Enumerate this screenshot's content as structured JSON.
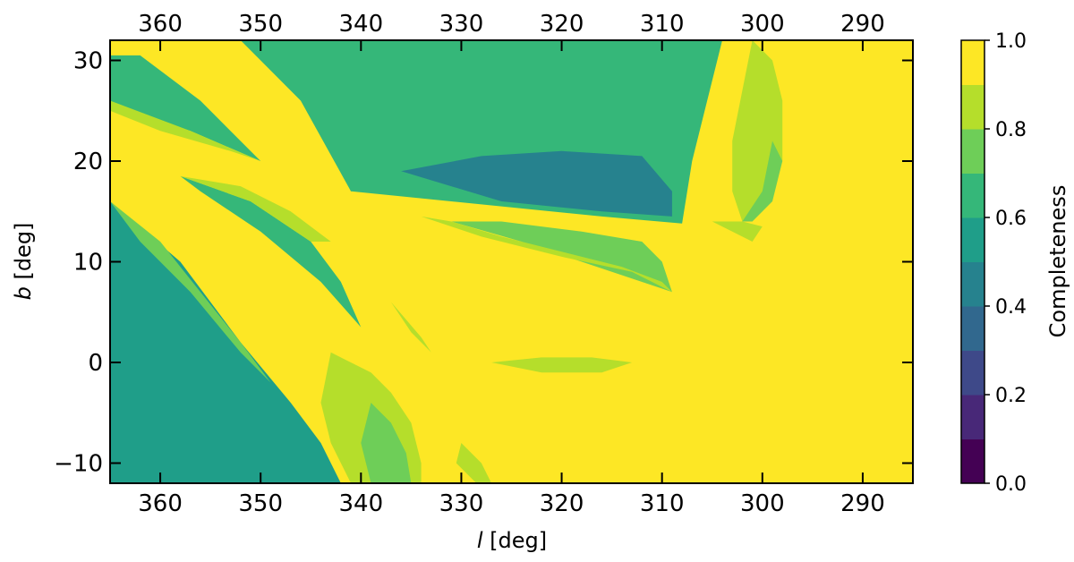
{
  "chart_data": {
    "type": "heatmap",
    "title": "",
    "xlabel_var": "l",
    "xlabel_unit": " [deg]",
    "ylabel_var": "b",
    "ylabel_unit": " [deg]",
    "xlim": [
      365,
      285
    ],
    "ylim": [
      -12,
      32
    ],
    "x_ticks": [
      360,
      350,
      340,
      330,
      320,
      310,
      300,
      290
    ],
    "x_tick_labels": [
      "360",
      "350",
      "340",
      "330",
      "320",
      "310",
      "300",
      "290"
    ],
    "y_ticks": [
      -10,
      0,
      10,
      20,
      30
    ],
    "y_tick_labels": [
      "−10",
      "0",
      "10",
      "20",
      "30"
    ],
    "top_axis_ticks": [
      360,
      350,
      340,
      330,
      320,
      310,
      300,
      290
    ],
    "top_axis_tick_labels": [
      "360",
      "350",
      "340",
      "330",
      "320",
      "310",
      "300",
      "290"
    ],
    "grid": false,
    "colorbar": {
      "label": "Completeness",
      "range": [
        0,
        1
      ],
      "levels": [
        0.0,
        0.1,
        0.2,
        0.3,
        0.4,
        0.5,
        0.6,
        0.7,
        0.8,
        0.9,
        1.0
      ],
      "colors": [
        "#440154",
        "#482878",
        "#3e4989",
        "#31688e",
        "#26828e",
        "#1f9e89",
        "#35b779",
        "#6ece58",
        "#b5de2b",
        "#fde725"
      ],
      "ticks": [
        0.0,
        0.2,
        0.4,
        0.6,
        0.8,
        1.0
      ],
      "tick_labels": [
        "0.0",
        "0.2",
        "0.4",
        "0.6",
        "0.8",
        "1.0"
      ]
    },
    "background_value": 0.95,
    "regions": [
      {
        "name": "upper-central-field",
        "value": 0.5,
        "polygon": [
          [
            341,
            17
          ],
          [
            337,
            18
          ],
          [
            332,
            19.5
          ],
          [
            325,
            21
          ],
          [
            318,
            22
          ],
          [
            312,
            23
          ],
          [
            308,
            25
          ],
          [
            306,
            30
          ],
          [
            305,
            32
          ],
          [
            345,
            32
          ],
          [
            345,
            26
          ]
        ]
      },
      {
        "name": "upper-central-gradient",
        "value": 0.65,
        "polygon": [
          [
            352,
            32
          ],
          [
            346,
            26
          ],
          [
            341,
            17
          ],
          [
            336,
            16.5
          ],
          [
            326,
            15.5
          ],
          [
            316,
            14.5
          ],
          [
            308,
            13.8
          ],
          [
            307,
            20
          ],
          [
            304,
            32
          ]
        ]
      },
      {
        "name": "upper-central-deep",
        "value": 0.4,
        "polygon": [
          [
            336,
            19
          ],
          [
            328,
            20.5
          ],
          [
            320,
            21
          ],
          [
            312,
            20.5
          ],
          [
            309,
            17
          ],
          [
            309,
            14.5
          ],
          [
            316,
            15
          ],
          [
            326,
            16
          ]
        ]
      },
      {
        "name": "upper-left-wedge",
        "value": 0.6,
        "polygon": [
          [
            365,
            30.5
          ],
          [
            362,
            30.5
          ],
          [
            356,
            26
          ],
          [
            350,
            20
          ],
          [
            357,
            23
          ],
          [
            365,
            25.5
          ]
        ]
      },
      {
        "name": "left-wedge-edge",
        "value": 0.85,
        "polygon": [
          [
            365,
            26
          ],
          [
            357,
            23
          ],
          [
            350,
            20
          ],
          [
            353,
            21
          ],
          [
            360,
            23
          ],
          [
            365,
            25
          ]
        ]
      },
      {
        "name": "left-mid-wedge",
        "value": 0.65,
        "polygon": [
          [
            358,
            18.5
          ],
          [
            351,
            16
          ],
          [
            345,
            12
          ],
          [
            342,
            8
          ],
          [
            340,
            3.5
          ],
          [
            344,
            8
          ],
          [
            350,
            13
          ],
          [
            356,
            17
          ]
        ]
      },
      {
        "name": "left-mid-wedge-edge",
        "value": 0.85,
        "polygon": [
          [
            358,
            18.5
          ],
          [
            352,
            17.5
          ],
          [
            347,
            15
          ],
          [
            343,
            12
          ],
          [
            345,
            12
          ],
          [
            351,
            16
          ]
        ]
      },
      {
        "name": "bottom-left-field",
        "value": 0.55,
        "polygon": [
          [
            365,
            16
          ],
          [
            358,
            10
          ],
          [
            352,
            2
          ],
          [
            347,
            -4
          ],
          [
            344,
            -8
          ],
          [
            342,
            -12
          ],
          [
            365,
            -12
          ]
        ]
      },
      {
        "name": "bottom-left-edge",
        "value": 0.7,
        "polygon": [
          [
            365,
            16
          ],
          [
            360,
            12
          ],
          [
            356,
            7
          ],
          [
            352,
            2
          ],
          [
            349,
            -2
          ],
          [
            347,
            -4
          ],
          [
            352,
            1
          ],
          [
            357,
            7
          ],
          [
            362,
            12
          ]
        ]
      },
      {
        "name": "bottom-band",
        "value": 0.85,
        "polygon": [
          [
            343,
            1
          ],
          [
            339,
            -1
          ],
          [
            337,
            -3
          ],
          [
            335,
            -6
          ],
          [
            334,
            -10
          ],
          [
            334,
            -12
          ],
          [
            341,
            -12
          ],
          [
            343,
            -8
          ],
          [
            344,
            -4
          ]
        ]
      },
      {
        "name": "bottom-band-core",
        "value": 0.7,
        "polygon": [
          [
            339,
            -4
          ],
          [
            337,
            -6
          ],
          [
            335.5,
            -9
          ],
          [
            335,
            -12
          ],
          [
            339,
            -12
          ],
          [
            340,
            -8
          ]
        ]
      },
      {
        "name": "lower-middle-band",
        "value": 0.75,
        "polygon": [
          [
            331,
            14
          ],
          [
            324,
            12
          ],
          [
            318,
            10
          ],
          [
            312,
            8
          ],
          [
            309,
            7
          ],
          [
            310,
            10
          ],
          [
            312,
            12
          ],
          [
            318,
            13
          ],
          [
            326,
            14
          ]
        ]
      },
      {
        "name": "lower-middle-band-edge",
        "value": 0.85,
        "polygon": [
          [
            334,
            14.5
          ],
          [
            331,
            14
          ],
          [
            326,
            12.5
          ],
          [
            320,
            11
          ],
          [
            314,
            9.5
          ],
          [
            310,
            8
          ],
          [
            309,
            7
          ],
          [
            313,
            9
          ],
          [
            320,
            10.5
          ],
          [
            328,
            12.5
          ]
        ]
      },
      {
        "name": "small-triangle",
        "value": 0.8,
        "polygon": [
          [
            337,
            6
          ],
          [
            335,
            3
          ],
          [
            333,
            1
          ],
          [
            334,
            2.5
          ]
        ]
      },
      {
        "name": "small-streak",
        "value": 0.85,
        "polygon": [
          [
            327,
            0
          ],
          [
            322,
            -1
          ],
          [
            316,
            -1
          ],
          [
            313,
            0
          ],
          [
            317,
            0.5
          ],
          [
            322,
            0.5
          ]
        ]
      },
      {
        "name": "bottom-small-streak",
        "value": 0.85,
        "polygon": [
          [
            330,
            -8
          ],
          [
            328,
            -10
          ],
          [
            327,
            -12
          ],
          [
            328.5,
            -12
          ],
          [
            330.5,
            -10
          ]
        ]
      },
      {
        "name": "right-diagonal-band",
        "value": 0.8,
        "polygon": [
          [
            301,
            32
          ],
          [
            299,
            30
          ],
          [
            298,
            26
          ],
          [
            298,
            20
          ],
          [
            300,
            15
          ],
          [
            302,
            14
          ],
          [
            303,
            17
          ],
          [
            303,
            22
          ],
          [
            302,
            27
          ],
          [
            301,
            32
          ]
        ]
      },
      {
        "name": "right-diagonal-band-2",
        "value": 0.7,
        "polygon": [
          [
            299,
            22
          ],
          [
            298,
            20
          ],
          [
            299,
            16
          ],
          [
            301,
            14
          ],
          [
            302,
            14
          ],
          [
            300,
            17
          ]
        ]
      },
      {
        "name": "right-lower-streak",
        "value": 0.85,
        "polygon": [
          [
            305,
            14
          ],
          [
            303,
            13
          ],
          [
            301,
            12
          ],
          [
            300,
            13.5
          ],
          [
            302,
            14
          ]
        ]
      }
    ]
  }
}
